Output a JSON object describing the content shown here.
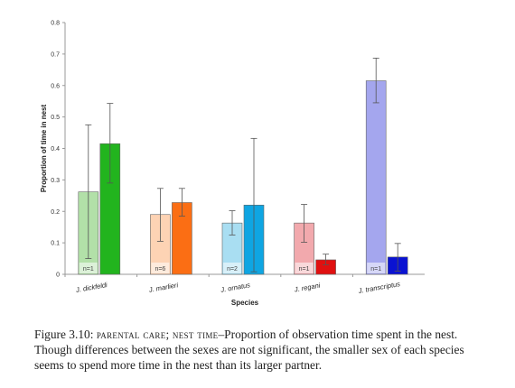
{
  "chart_data": {
    "type": "bar",
    "xlabel": "Species",
    "ylabel": "Proportion of time in nest",
    "ylim": [
      0,
      0.8
    ],
    "yticks": [
      "0",
      "0.1",
      "0.2",
      "0.3",
      "0.4",
      "0.5",
      "0.6",
      "0.7",
      "0.8"
    ],
    "grid": false,
    "categories": [
      {
        "name": "J. dickfeldi",
        "n_label": "n=1",
        "bars": [
          {
            "value": 0.262,
            "err_low": 0.05,
            "err_high": 0.475,
            "color": "#b2e0a8"
          },
          {
            "value": 0.415,
            "err_low": 0.29,
            "err_high": 0.543,
            "color": "#22b41e"
          }
        ]
      },
      {
        "name": "J. marlieri",
        "n_label": "n=6",
        "bars": [
          {
            "value": 0.19,
            "err_low": 0.105,
            "err_high": 0.273,
            "color": "#fdd3b4"
          },
          {
            "value": 0.228,
            "err_low": 0.185,
            "err_high": 0.273,
            "color": "#fb6e14"
          }
        ]
      },
      {
        "name": "J. ornatus",
        "n_label": "n=2",
        "bars": [
          {
            "value": 0.163,
            "err_low": 0.125,
            "err_high": 0.202,
            "color": "#a9def2"
          },
          {
            "value": 0.22,
            "err_low": 0.008,
            "err_high": 0.432,
            "color": "#0fa5e2"
          }
        ]
      },
      {
        "name": "J. regani",
        "n_label": "n=1",
        "bars": [
          {
            "value": 0.163,
            "err_low": 0.102,
            "err_high": 0.222,
            "color": "#f2a9ad"
          },
          {
            "value": 0.046,
            "err_low": 0.03,
            "err_high": 0.064,
            "color": "#e01010"
          }
        ]
      },
      {
        "name": "J. transcriptus",
        "n_label": "n=1",
        "bars": [
          {
            "value": 0.615,
            "err_low": 0.545,
            "err_high": 0.687,
            "color": "#a4a6ee"
          },
          {
            "value": 0.055,
            "err_low": 0.01,
            "err_high": 0.098,
            "color": "#0a12d2"
          }
        ]
      }
    ]
  },
  "caption": {
    "prefix": "Figure 3.10:",
    "sc1": "parental care;",
    "sc2": "nest time",
    "text": "–Proportion of observation time spent in the nest.  Though differences between the sexes are not significant, the smaller sex of each species seems to spend more time in the nest than its larger partner."
  }
}
